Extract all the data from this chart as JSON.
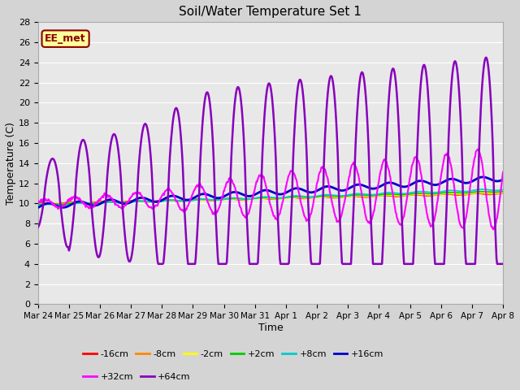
{
  "title": "Soil/Water Temperature Set 1",
  "xlabel": "Time",
  "ylabel": "Temperature (C)",
  "ylim": [
    0,
    28
  ],
  "yticks": [
    0,
    2,
    4,
    6,
    8,
    10,
    12,
    14,
    16,
    18,
    20,
    22,
    24,
    26,
    28
  ],
  "xtick_labels": [
    "Mar 24",
    "Mar 25",
    "Mar 26",
    "Mar 27",
    "Mar 28",
    "Mar 29",
    "Mar 30",
    "Mar 31",
    "Apr 1",
    "Apr 2",
    "Apr 3",
    "Apr 4",
    "Apr 5",
    "Apr 6",
    "Apr 7",
    "Apr 8"
  ],
  "annotation_text": "EE_met",
  "annotation_box_color": "#FFFF99",
  "annotation_text_color": "#8B0000",
  "annotation_border_color": "#8B0000",
  "fig_bg_color": "#D4D4D4",
  "plot_bg_color": "#E8E8E8",
  "grid_color": "#FFFFFF",
  "series": [
    {
      "label": "-16cm",
      "color": "#FF0000",
      "lw": 1.2
    },
    {
      "label": "-8cm",
      "color": "#FF8800",
      "lw": 1.2
    },
    {
      "label": "-2cm",
      "color": "#FFFF00",
      "lw": 1.2
    },
    {
      "label": "+2cm",
      "color": "#00CC00",
      "lw": 1.2
    },
    {
      "label": "+8cm",
      "color": "#00CCCC",
      "lw": 1.2
    },
    {
      "label": "+16cm",
      "color": "#0000CC",
      "lw": 2.0
    },
    {
      "label": "+32cm",
      "color": "#FF00FF",
      "lw": 1.5
    },
    {
      "label": "+64cm",
      "color": "#8800BB",
      "lw": 1.8
    }
  ]
}
